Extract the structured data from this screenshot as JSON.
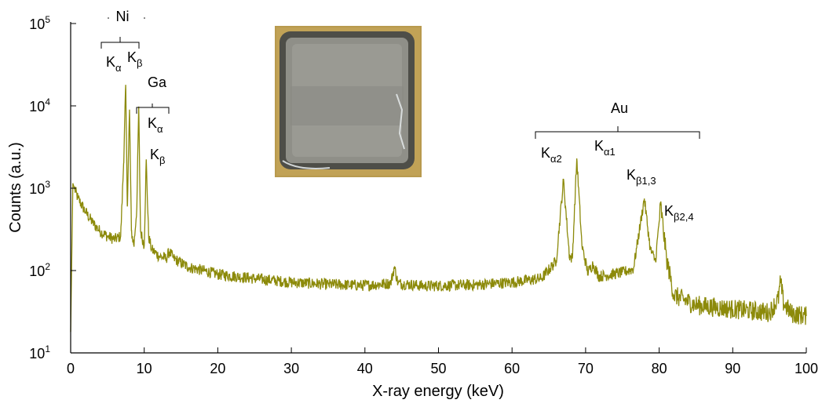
{
  "chart_data": {
    "type": "line",
    "xlabel": "X-ray energy (keV)",
    "ylabel": "Counts (a.u.)",
    "xlim": [
      0,
      100
    ],
    "ylim": [
      10,
      100000
    ],
    "y_scale": "log",
    "x_ticks": [
      0,
      10,
      20,
      30,
      40,
      50,
      60,
      70,
      80,
      90,
      100
    ],
    "y_ticks": [
      {
        "value": 10,
        "base": "10",
        "exp": "1"
      },
      {
        "value": 100,
        "base": "10",
        "exp": "2"
      },
      {
        "value": 1000,
        "base": "10",
        "exp": "3"
      },
      {
        "value": 10000,
        "base": "10",
        "exp": "4"
      },
      {
        "value": 100000,
        "base": "10",
        "exp": "5"
      }
    ],
    "grid": false,
    "line_color": "#8c8a0a",
    "series": [
      {
        "x": [
          0.0,
          0.3,
          0.5,
          1,
          2,
          3,
          4,
          5,
          6,
          6.8,
          7.2,
          7.48,
          7.7,
          8.0,
          8.26,
          8.6,
          9.0,
          9.25,
          9.5,
          10.0,
          10.27,
          10.6,
          11,
          12,
          13,
          13.4,
          14,
          16,
          18,
          20,
          25,
          30,
          35,
          40,
          43.5,
          44.0,
          44.5,
          48,
          55,
          60,
          64,
          66.0,
          66.99,
          67.8,
          68.2,
          68.8,
          69.5,
          70.3,
          71.0,
          71.8,
          73,
          75,
          76.5,
          77.98,
          78.8,
          79.5,
          80.2,
          81,
          82,
          85,
          90,
          95,
          96.2,
          96.5,
          96.9,
          98,
          100
        ],
        "y": [
          18,
          1150,
          1000,
          750,
          520,
          380,
          300,
          260,
          240,
          260,
          2000,
          18000,
          600,
          9000,
          300,
          200,
          600,
          9800,
          300,
          200,
          2200,
          260,
          180,
          150,
          140,
          170,
          140,
          110,
          100,
          90,
          80,
          72,
          68,
          66,
          70,
          110,
          70,
          65,
          67,
          72,
          80,
          130,
          1250,
          150,
          140,
          2300,
          200,
          95,
          120,
          85,
          88,
          95,
          105,
          750,
          180,
          130,
          620,
          140,
          50,
          38,
          34,
          31,
          45,
          75,
          40,
          30,
          28
        ]
      }
    ],
    "annotations": {
      "ni": {
        "label": "Ni",
        "ka": "K",
        "ka_sub": "α",
        "kb": "K",
        "kb_sub": "β"
      },
      "ga": {
        "label": "Ga",
        "ka": "K",
        "ka_sub": "α",
        "kb": "K",
        "kb_sub": "β"
      },
      "au": {
        "label": "Au",
        "ka2": "K",
        "ka2_sub": "α2",
        "ka1": "K",
        "ka1_sub": "α1",
        "kb13": "K",
        "kb13_sub": "β1,3",
        "kb24": "K",
        "kb24_sub": "β2,4"
      }
    }
  }
}
